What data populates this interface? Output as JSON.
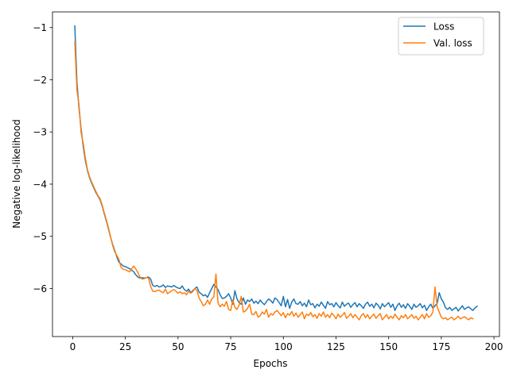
{
  "chart_data": {
    "type": "line",
    "title": "",
    "xlabel": "Epochs",
    "ylabel": "Negative log-likelihood",
    "xlim": [
      -9.6,
      202.6
    ],
    "ylim": [
      -6.92,
      -0.7
    ],
    "xticks": [
      0,
      25,
      50,
      75,
      100,
      125,
      150,
      175,
      200
    ],
    "yticks": [
      -1,
      -2,
      -3,
      -4,
      -5,
      -6
    ],
    "ytick_labels": [
      "−1",
      "−2",
      "−3",
      "−4",
      "−5",
      "−6"
    ],
    "legend": {
      "position": "top-right"
    },
    "grid": false,
    "x_start": 1,
    "series": [
      {
        "name": "Loss",
        "color": "#1f77b4",
        "values": [
          -0.97,
          -2.05,
          -2.55,
          -2.95,
          -3.28,
          -3.55,
          -3.74,
          -3.88,
          -3.98,
          -4.07,
          -4.16,
          -4.23,
          -4.3,
          -4.42,
          -4.57,
          -4.71,
          -4.86,
          -5.02,
          -5.16,
          -5.28,
          -5.4,
          -5.5,
          -5.53,
          -5.57,
          -5.58,
          -5.6,
          -5.62,
          -5.65,
          -5.68,
          -5.74,
          -5.78,
          -5.8,
          -5.79,
          -5.8,
          -5.79,
          -5.78,
          -5.82,
          -5.94,
          -5.96,
          -5.94,
          -5.97,
          -5.96,
          -5.93,
          -5.98,
          -5.95,
          -5.96,
          -5.97,
          -5.94,
          -5.97,
          -5.99,
          -6,
          -5.95,
          -6.02,
          -6.05,
          -6.01,
          -6.08,
          -6.04,
          -6,
          -5.97,
          -6.07,
          -6.1,
          -6.14,
          -6.12,
          -6.17,
          -6.08,
          -6,
          -5.92,
          -5.97,
          -6.02,
          -6.12,
          -6.19,
          -6.18,
          -6.15,
          -6.1,
          -6.18,
          -6.3,
          -6.04,
          -6.2,
          -6.27,
          -6.3,
          -6.18,
          -6.3,
          -6.22,
          -6.25,
          -6.2,
          -6.28,
          -6.24,
          -6.29,
          -6.22,
          -6.27,
          -6.31,
          -6.25,
          -6.2,
          -6.23,
          -6.28,
          -6.18,
          -6.21,
          -6.27,
          -6.33,
          -6.15,
          -6.35,
          -6.21,
          -6.38,
          -6.26,
          -6.2,
          -6.29,
          -6.3,
          -6.25,
          -6.33,
          -6.28,
          -6.35,
          -6.22,
          -6.31,
          -6.29,
          -6.37,
          -6.3,
          -6.34,
          -6.26,
          -6.32,
          -6.38,
          -6.25,
          -6.31,
          -6.29,
          -6.35,
          -6.27,
          -6.33,
          -6.37,
          -6.26,
          -6.34,
          -6.3,
          -6.28,
          -6.36,
          -6.31,
          -6.27,
          -6.35,
          -6.29,
          -6.33,
          -6.38,
          -6.3,
          -6.26,
          -6.34,
          -6.3,
          -6.37,
          -6.28,
          -6.32,
          -6.39,
          -6.29,
          -6.35,
          -6.31,
          -6.27,
          -6.36,
          -6.3,
          -6.42,
          -6.33,
          -6.28,
          -6.36,
          -6.31,
          -6.38,
          -6.29,
          -6.34,
          -6.4,
          -6.3,
          -6.36,
          -6.33,
          -6.29,
          -6.37,
          -6.32,
          -6.42,
          -6.35,
          -6.3,
          -6.38,
          -6.33,
          -6.29,
          -6.08,
          -6.2,
          -6.26,
          -6.37,
          -6.4,
          -6.36,
          -6.42,
          -6.39,
          -6.36,
          -6.43,
          -6.38,
          -6.33,
          -6.4,
          -6.37,
          -6.35,
          -6.39,
          -6.42,
          -6.37,
          -6.34
        ]
      },
      {
        "name": "Val. loss",
        "color": "#ff7f0e",
        "values": [
          -1.27,
          -2.2,
          -2.48,
          -3.02,
          -3.22,
          -3.5,
          -3.72,
          -3.86,
          -3.96,
          -4.05,
          -4.14,
          -4.22,
          -4.28,
          -4.4,
          -4.55,
          -4.69,
          -4.84,
          -5.02,
          -5.18,
          -5.3,
          -5.37,
          -5.45,
          -5.6,
          -5.63,
          -5.64,
          -5.66,
          -5.68,
          -5.62,
          -5.57,
          -5.63,
          -5.7,
          -5.78,
          -5.82,
          -5.81,
          -5.79,
          -5.8,
          -5.96,
          -6.05,
          -6.06,
          -6.04,
          -6.03,
          -6.06,
          -6.08,
          -6.01,
          -6.1,
          -6.07,
          -6.04,
          -6.02,
          -6.05,
          -6.09,
          -6.06,
          -6.1,
          -6.08,
          -6.12,
          -6.05,
          -6.09,
          -6.06,
          -6.0,
          -6.04,
          -6.18,
          -6.25,
          -6.33,
          -6.3,
          -6.22,
          -6.3,
          -6.2,
          -6.16,
          -5.72,
          -6.28,
          -6.35,
          -6.3,
          -6.34,
          -6.25,
          -6.4,
          -6.42,
          -6.22,
          -6.36,
          -6.4,
          -6.32,
          -6.15,
          -6.45,
          -6.43,
          -6.38,
          -6.3,
          -6.49,
          -6.5,
          -6.44,
          -6.55,
          -6.52,
          -6.45,
          -6.49,
          -6.4,
          -6.55,
          -6.48,
          -6.51,
          -6.45,
          -6.42,
          -6.47,
          -6.52,
          -6.46,
          -6.56,
          -6.48,
          -6.51,
          -6.44,
          -6.53,
          -6.47,
          -6.55,
          -6.5,
          -6.45,
          -6.58,
          -6.49,
          -6.52,
          -6.46,
          -6.54,
          -6.5,
          -6.57,
          -6.48,
          -6.53,
          -6.45,
          -6.55,
          -6.5,
          -6.56,
          -6.47,
          -6.52,
          -6.58,
          -6.49,
          -6.55,
          -6.51,
          -6.46,
          -6.57,
          -6.53,
          -6.48,
          -6.56,
          -6.5,
          -6.55,
          -6.6,
          -6.52,
          -6.48,
          -6.56,
          -6.5,
          -6.58,
          -6.53,
          -6.49,
          -6.57,
          -6.52,
          -6.48,
          -6.6,
          -6.55,
          -6.5,
          -6.58,
          -6.53,
          -6.57,
          -6.49,
          -6.55,
          -6.6,
          -6.52,
          -6.56,
          -6.5,
          -6.58,
          -6.54,
          -6.5,
          -6.57,
          -6.53,
          -6.6,
          -6.55,
          -6.5,
          -6.58,
          -6.48,
          -6.55,
          -6.52,
          -6.45,
          -5.97,
          -6.35,
          -6.45,
          -6.55,
          -6.58,
          -6.56,
          -6.6,
          -6.57,
          -6.55,
          -6.6,
          -6.57,
          -6.53,
          -6.58,
          -6.56,
          -6.54,
          -6.57,
          -6.6,
          -6.56,
          -6.58
        ]
      }
    ]
  }
}
